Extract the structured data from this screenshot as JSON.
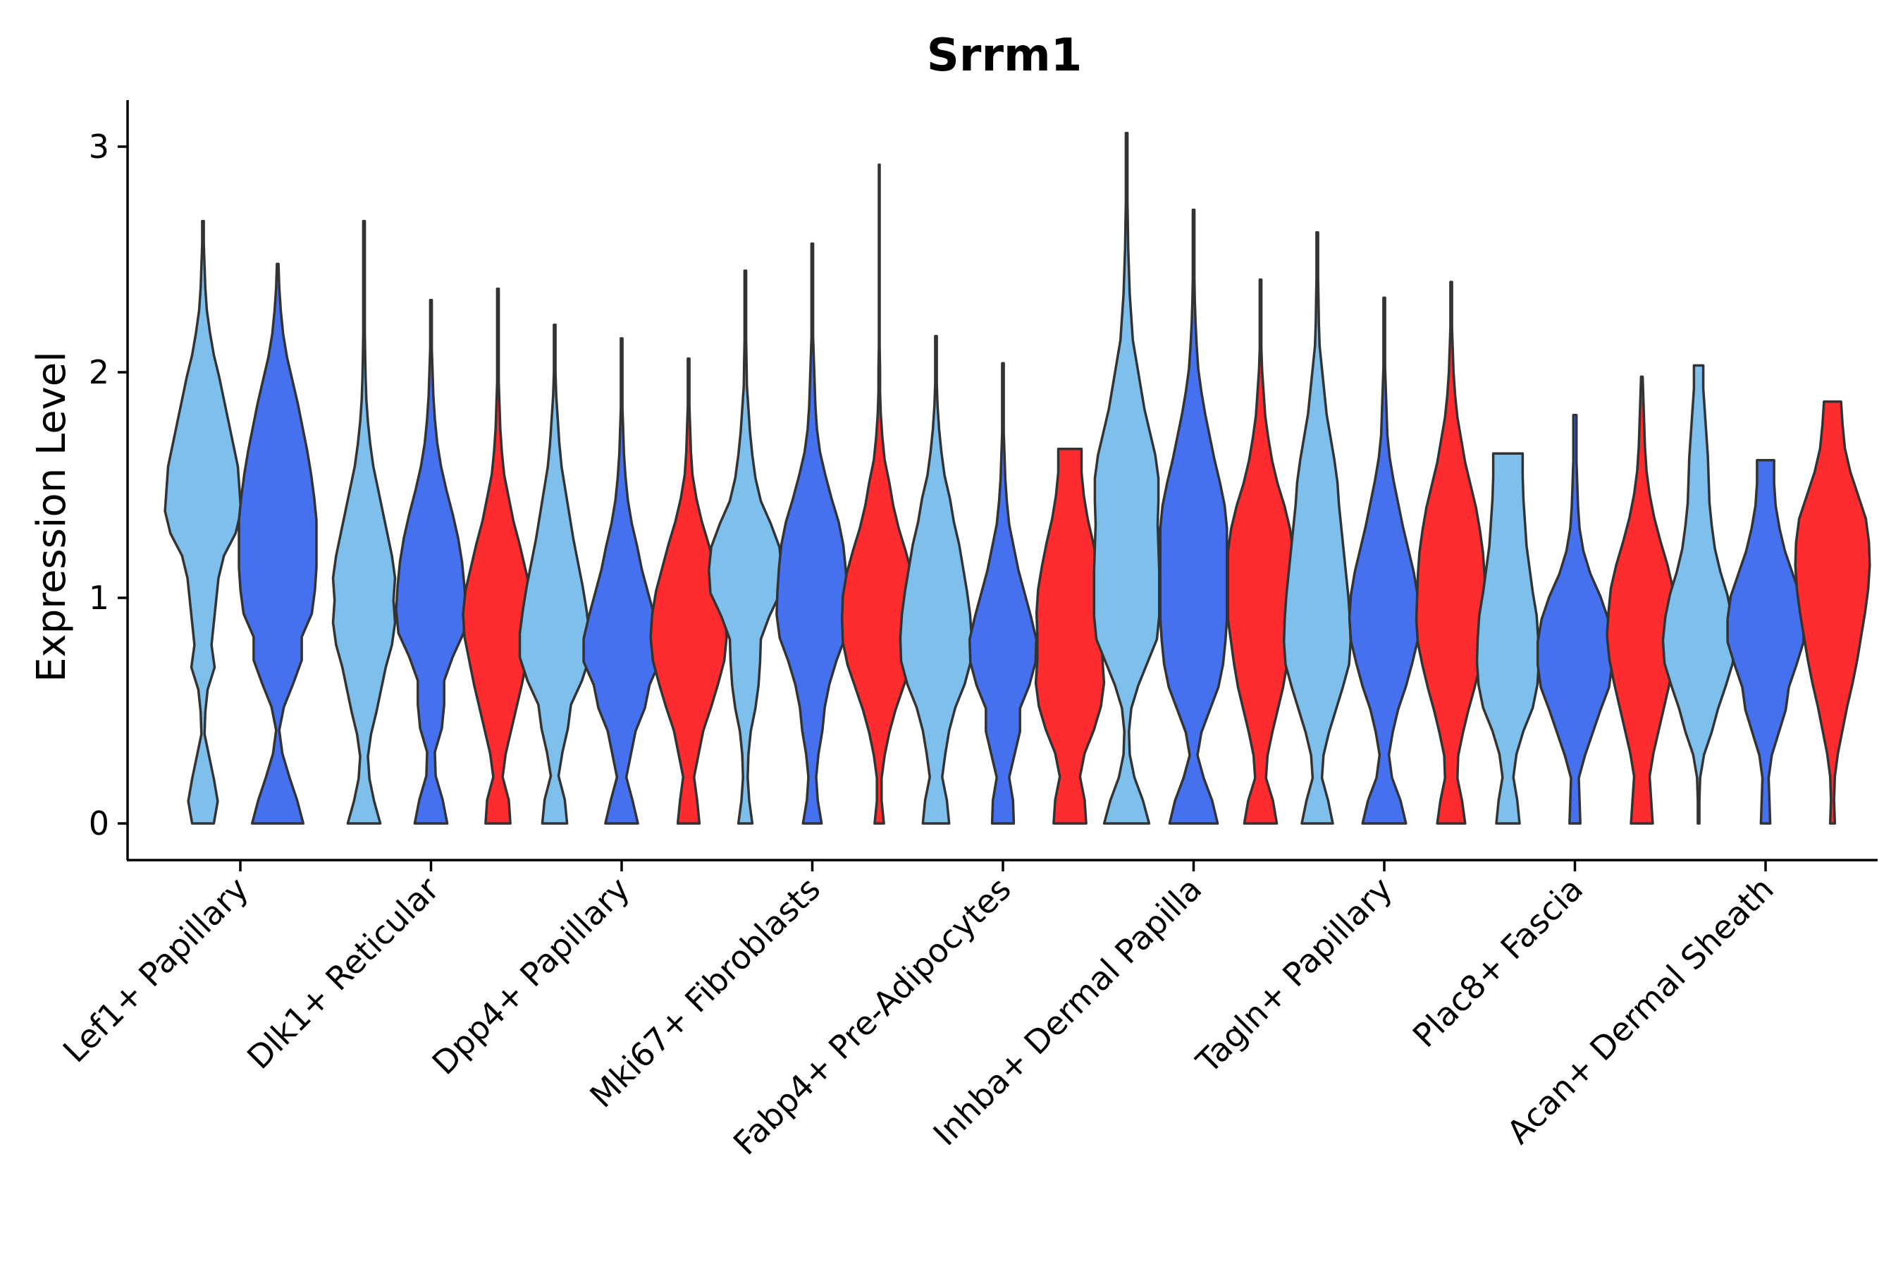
{
  "chart_data": {
    "type": "violin",
    "title": "Srrm1",
    "xlabel": "",
    "ylabel": "Expression Level",
    "ylim": [
      -0.15,
      3.2
    ],
    "yticks": [
      0,
      1,
      2,
      3
    ],
    "grid": false,
    "legend": "none",
    "colors": [
      "#7fbfec",
      "#4571ee",
      "#fe2b2f"
    ],
    "categories": [
      "Lef1+ Papillary",
      "Dlk1+ Reticular",
      "Dpp4+ Papillary",
      "Mki67+ Fibroblasts",
      "Fabp4+ Pre-Adipocytes",
      "Inhba+ Dermal Papilla",
      "Tagln+ Papillary",
      "Plac8+ Fascia",
      "Acan+ Dermal Sheath"
    ],
    "violins": [
      {
        "cat": 0,
        "group": 0,
        "max": 2.67,
        "widths": [
          0.28,
          0.38,
          0.28,
          0.16,
          0.04,
          0.06,
          0.12,
          0.3,
          0.22,
          0.28,
          0.34,
          0.4,
          0.54,
          0.84,
          0.98,
          0.94,
          0.9,
          0.78,
          0.66,
          0.54,
          0.42,
          0.28,
          0.18,
          0.1,
          0.06,
          0.04,
          0.02,
          0.02
        ]
      },
      {
        "cat": 0,
        "group": 1,
        "max": 2.48,
        "widths": [
          0.66,
          0.5,
          0.3,
          0.12,
          0.04,
          0.16,
          0.4,
          0.62,
          0.62,
          0.88,
          0.96,
          1.0,
          1.0,
          1.0,
          0.94,
          0.86,
          0.76,
          0.64,
          0.52,
          0.38,
          0.24,
          0.14,
          0.08,
          0.04,
          0.02
        ]
      },
      {
        "cat": 1,
        "group": 0,
        "max": 2.67,
        "widths": [
          0.42,
          0.26,
          0.14,
          0.1,
          0.18,
          0.32,
          0.44,
          0.56,
          0.72,
          0.8,
          0.76,
          0.8,
          0.72,
          0.6,
          0.48,
          0.36,
          0.24,
          0.16,
          0.1,
          0.06,
          0.04,
          0.03,
          0.02,
          0.02,
          0.02,
          0.02,
          0.02,
          0.02
        ]
      },
      {
        "cat": 1,
        "group": 1,
        "max": 2.32,
        "widths": [
          0.42,
          0.3,
          0.12,
          0.1,
          0.28,
          0.34,
          0.34,
          0.56,
          0.84,
          0.9,
          0.86,
          0.8,
          0.7,
          0.56,
          0.4,
          0.26,
          0.16,
          0.1,
          0.06,
          0.04,
          0.02,
          0.02,
          0.02
        ]
      },
      {
        "cat": 1,
        "group": 2,
        "max": 2.37,
        "widths": [
          0.32,
          0.28,
          0.12,
          0.2,
          0.34,
          0.48,
          0.62,
          0.74,
          0.86,
          0.9,
          0.84,
          0.7,
          0.56,
          0.4,
          0.28,
          0.16,
          0.1,
          0.06,
          0.04,
          0.02,
          0.02,
          0.02,
          0.02,
          0.02
        ]
      },
      {
        "cat": 2,
        "group": 0,
        "max": 2.21,
        "widths": [
          0.32,
          0.26,
          0.1,
          0.2,
          0.34,
          0.42,
          0.7,
          0.9,
          0.9,
          0.82,
          0.72,
          0.6,
          0.48,
          0.38,
          0.28,
          0.18,
          0.12,
          0.08,
          0.04,
          0.02,
          0.02,
          0.02
        ]
      },
      {
        "cat": 2,
        "group": 1,
        "max": 2.15,
        "widths": [
          0.42,
          0.28,
          0.12,
          0.24,
          0.36,
          0.6,
          0.72,
          0.98,
          0.98,
          0.84,
          0.68,
          0.52,
          0.4,
          0.26,
          0.16,
          0.1,
          0.06,
          0.04,
          0.02,
          0.02,
          0.02,
          0.02
        ]
      },
      {
        "cat": 2,
        "group": 2,
        "max": 2.06,
        "widths": [
          0.28,
          0.22,
          0.14,
          0.26,
          0.38,
          0.58,
          0.76,
          0.92,
          0.98,
          0.94,
          0.84,
          0.68,
          0.52,
          0.34,
          0.2,
          0.1,
          0.06,
          0.04,
          0.02,
          0.02,
          0.02
        ]
      },
      {
        "cat": 3,
        "group": 0,
        "max": 2.45,
        "widths": [
          0.18,
          0.1,
          0.06,
          0.08,
          0.14,
          0.26,
          0.34,
          0.38,
          0.4,
          0.62,
          0.9,
          0.94,
          0.88,
          0.66,
          0.4,
          0.26,
          0.18,
          0.12,
          0.08,
          0.04,
          0.03,
          0.02,
          0.02,
          0.02,
          0.02
        ]
      },
      {
        "cat": 3,
        "group": 1,
        "max": 2.57,
        "widths": [
          0.24,
          0.14,
          0.1,
          0.16,
          0.26,
          0.32,
          0.44,
          0.62,
          0.84,
          0.92,
          0.9,
          0.86,
          0.8,
          0.68,
          0.5,
          0.34,
          0.2,
          0.12,
          0.08,
          0.06,
          0.04,
          0.02,
          0.02,
          0.02,
          0.02,
          0.02
        ]
      },
      {
        "cat": 3,
        "group": 2,
        "max": 2.92,
        "widths": [
          0.12,
          0.06,
          0.06,
          0.14,
          0.26,
          0.42,
          0.62,
          0.82,
          0.94,
          0.96,
          0.94,
          0.84,
          0.68,
          0.5,
          0.36,
          0.26,
          0.14,
          0.08,
          0.04,
          0.02,
          0.02,
          0.01,
          0.01,
          0.01,
          0.01,
          0.01,
          0.01,
          0.01,
          0.01,
          0.01
        ]
      },
      {
        "cat": 4,
        "group": 0,
        "max": 2.16,
        "widths": [
          0.34,
          0.28,
          0.16,
          0.24,
          0.34,
          0.5,
          0.74,
          0.9,
          0.92,
          0.88,
          0.8,
          0.7,
          0.6,
          0.46,
          0.36,
          0.22,
          0.14,
          0.08,
          0.04,
          0.02,
          0.02,
          0.02
        ]
      },
      {
        "cat": 4,
        "group": 1,
        "max": 2.04,
        "widths": [
          0.28,
          0.26,
          0.16,
          0.3,
          0.44,
          0.44,
          0.68,
          0.84,
          0.86,
          0.72,
          0.56,
          0.4,
          0.28,
          0.16,
          0.1,
          0.06,
          0.04,
          0.02,
          0.02,
          0.02,
          0.02
        ]
      },
      {
        "cat": 4,
        "group": 2,
        "max": 1.66,
        "widths": [
          0.42,
          0.38,
          0.26,
          0.38,
          0.62,
          0.8,
          0.88,
          0.84,
          0.84,
          0.86,
          0.82,
          0.72,
          0.6,
          0.46,
          0.36,
          0.3,
          0.3
        ]
      },
      {
        "cat": 5,
        "group": 0,
        "max": 3.06,
        "widths": [
          0.58,
          0.42,
          0.2,
          0.08,
          0.06,
          0.12,
          0.3,
          0.54,
          0.78,
          0.84,
          0.84,
          0.84,
          0.82,
          0.8,
          0.82,
          0.82,
          0.74,
          0.6,
          0.46,
          0.36,
          0.26,
          0.16,
          0.12,
          0.08,
          0.06,
          0.04,
          0.03,
          0.02,
          0.02,
          0.02,
          0.02
        ]
      },
      {
        "cat": 5,
        "group": 1,
        "max": 2.72,
        "widths": [
          0.62,
          0.48,
          0.26,
          0.1,
          0.2,
          0.42,
          0.64,
          0.76,
          0.82,
          0.86,
          0.86,
          0.86,
          0.86,
          0.86,
          0.8,
          0.68,
          0.54,
          0.42,
          0.3,
          0.2,
          0.12,
          0.08,
          0.05,
          0.03,
          0.02,
          0.02,
          0.02,
          0.02
        ]
      },
      {
        "cat": 5,
        "group": 2,
        "max": 2.41,
        "widths": [
          0.42,
          0.32,
          0.14,
          0.18,
          0.3,
          0.44,
          0.58,
          0.68,
          0.76,
          0.84,
          0.84,
          0.84,
          0.84,
          0.76,
          0.62,
          0.44,
          0.3,
          0.2,
          0.12,
          0.08,
          0.04,
          0.02,
          0.02,
          0.02,
          0.02
        ]
      },
      {
        "cat": 6,
        "group": 0,
        "max": 2.62,
        "widths": [
          0.4,
          0.28,
          0.12,
          0.16,
          0.3,
          0.48,
          0.66,
          0.82,
          0.86,
          0.84,
          0.8,
          0.74,
          0.68,
          0.62,
          0.56,
          0.52,
          0.44,
          0.34,
          0.24,
          0.18,
          0.12,
          0.06,
          0.04,
          0.03,
          0.02,
          0.02,
          0.02
        ]
      },
      {
        "cat": 6,
        "group": 1,
        "max": 2.33,
        "widths": [
          0.56,
          0.42,
          0.2,
          0.12,
          0.22,
          0.36,
          0.56,
          0.72,
          0.86,
          0.9,
          0.86,
          0.76,
          0.62,
          0.48,
          0.36,
          0.24,
          0.14,
          0.08,
          0.06,
          0.04,
          0.02,
          0.02,
          0.02,
          0.02
        ]
      },
      {
        "cat": 6,
        "group": 2,
        "max": 2.4,
        "widths": [
          0.36,
          0.28,
          0.16,
          0.18,
          0.3,
          0.44,
          0.6,
          0.74,
          0.86,
          0.9,
          0.88,
          0.86,
          0.82,
          0.74,
          0.64,
          0.5,
          0.36,
          0.26,
          0.16,
          0.1,
          0.06,
          0.04,
          0.02,
          0.02,
          0.02
        ]
      },
      {
        "cat": 7,
        "group": 0,
        "max": 1.64,
        "widths": [
          0.3,
          0.24,
          0.14,
          0.22,
          0.4,
          0.64,
          0.76,
          0.8,
          0.78,
          0.74,
          0.64,
          0.56,
          0.48,
          0.44,
          0.4,
          0.38,
          0.38
        ]
      },
      {
        "cat": 7,
        "group": 1,
        "max": 1.81,
        "widths": [
          0.14,
          0.12,
          0.1,
          0.26,
          0.46,
          0.66,
          0.88,
          0.96,
          0.96,
          0.86,
          0.66,
          0.4,
          0.22,
          0.12,
          0.08,
          0.06,
          0.04,
          0.04,
          0.04
        ]
      },
      {
        "cat": 7,
        "group": 2,
        "max": 1.98,
        "widths": [
          0.28,
          0.24,
          0.2,
          0.3,
          0.44,
          0.58,
          0.72,
          0.84,
          0.9,
          0.86,
          0.8,
          0.66,
          0.48,
          0.32,
          0.2,
          0.12,
          0.08,
          0.06,
          0.04,
          0.02
        ]
      },
      {
        "cat": 8,
        "group": 0,
        "max": 2.03,
        "widths": [
          0.02,
          0.02,
          0.04,
          0.14,
          0.34,
          0.5,
          0.7,
          0.88,
          0.92,
          0.86,
          0.74,
          0.56,
          0.42,
          0.34,
          0.28,
          0.26,
          0.24,
          0.2,
          0.16,
          0.12,
          0.12
        ]
      },
      {
        "cat": 8,
        "group": 1,
        "max": 1.61,
        "widths": [
          0.12,
          0.1,
          0.08,
          0.16,
          0.34,
          0.52,
          0.6,
          0.8,
          0.98,
          0.98,
          0.9,
          0.7,
          0.5,
          0.36,
          0.26,
          0.22,
          0.22
        ]
      },
      {
        "cat": 8,
        "group": 2,
        "max": 1.87,
        "widths": [
          0.06,
          0.04,
          0.06,
          0.14,
          0.26,
          0.38,
          0.52,
          0.64,
          0.74,
          0.84,
          0.92,
          0.96,
          0.94,
          0.86,
          0.66,
          0.46,
          0.32,
          0.26,
          0.22
        ]
      }
    ]
  }
}
